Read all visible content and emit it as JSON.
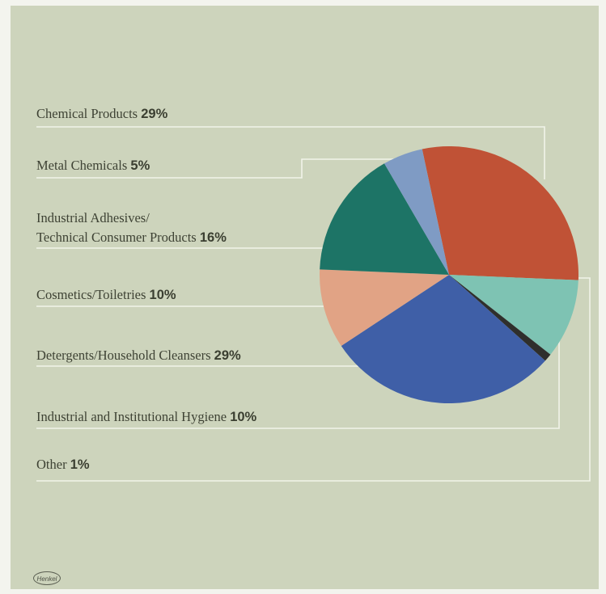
{
  "chart_data": {
    "type": "pie",
    "title": "",
    "slices": [
      {
        "label": "Chemical Products",
        "pct_text": "29%",
        "value": 29,
        "color": "#c05236"
      },
      {
        "label": "Metal Chemicals",
        "pct_text": "5%",
        "value": 5,
        "color": "#7f9bc4"
      },
      {
        "label": "Industrial Adhesives/",
        "label2": "Technical Consumer Products",
        "pct_text": "16%",
        "value": 16,
        "color": "#1d7466"
      },
      {
        "label": "Cosmetics/Toiletries",
        "pct_text": "10%",
        "value": 10,
        "color": "#e1a385"
      },
      {
        "label": "Detergents/Household Cleansers",
        "pct_text": "29%",
        "value": 29,
        "color": "#3f5fa7"
      },
      {
        "label": "Industrial and Institutional Hygiene",
        "pct_text": "10%",
        "value": 10,
        "color": "#7ec3b3"
      },
      {
        "label": "Other",
        "pct_text": "1%",
        "value": 1,
        "color": "#2f2f2c"
      }
    ]
  },
  "logo": {
    "text": "Henkel"
  },
  "colors": {
    "panel_background": "#cdd4bc",
    "leader_line": "#f2f3ea"
  }
}
